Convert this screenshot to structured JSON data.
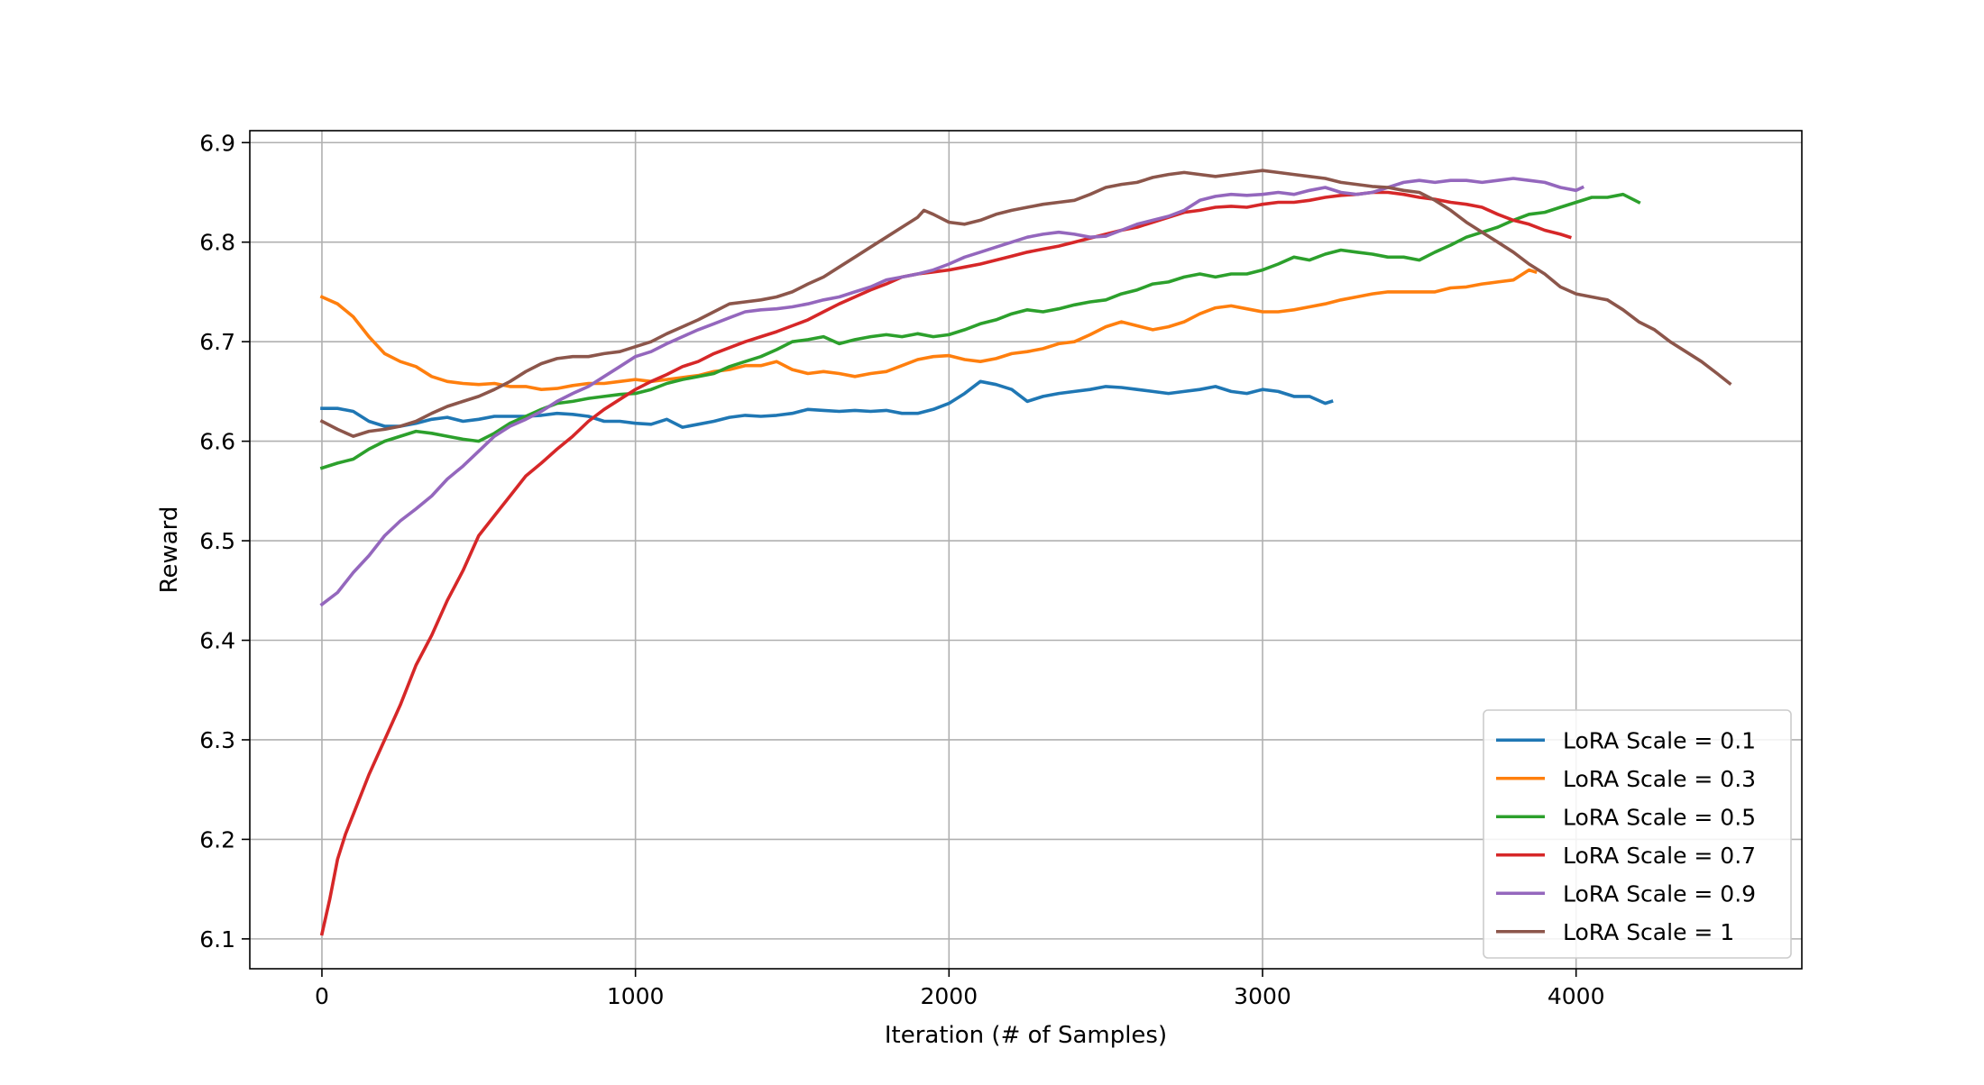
{
  "chart_data": {
    "type": "line",
    "title": "",
    "xlabel": "Iteration (# of Samples)",
    "ylabel": "Reward",
    "xlim": [
      -230,
      4720
    ],
    "ylim": [
      6.07,
      6.912
    ],
    "x_ticks": [
      0,
      1000,
      2000,
      3000,
      4000
    ],
    "y_ticks": [
      6.1,
      6.2,
      6.3,
      6.4,
      6.5,
      6.6,
      6.7,
      6.8,
      6.9
    ],
    "x_tick_labels": [
      "0",
      "1000",
      "2000",
      "3000",
      "4000"
    ],
    "y_tick_labels": [
      "6.1",
      "6.2",
      "6.3",
      "6.4",
      "6.5",
      "6.6",
      "6.7",
      "6.8",
      "6.9"
    ],
    "grid": true,
    "legend_position": "lower-right",
    "series": [
      {
        "name": "LoRA Scale = 0.1",
        "color": "#1f77b4",
        "x": [
          0,
          50,
          100,
          150,
          200,
          250,
          300,
          350,
          400,
          450,
          500,
          550,
          600,
          650,
          700,
          750,
          800,
          850,
          900,
          950,
          1000,
          1050,
          1100,
          1150,
          1200,
          1250,
          1300,
          1350,
          1400,
          1450,
          1500,
          1550,
          1600,
          1650,
          1700,
          1750,
          1800,
          1850,
          1900,
          1950,
          2000,
          2050,
          2100,
          2150,
          2200,
          2250,
          2300,
          2350,
          2400,
          2450,
          2500,
          2550,
          2600,
          2650,
          2700,
          2750,
          2800,
          2850,
          2900,
          2950,
          3000,
          3050,
          3100,
          3150,
          3200,
          3220
        ],
        "y": [
          6.633,
          6.633,
          6.63,
          6.62,
          6.615,
          6.615,
          6.618,
          6.622,
          6.624,
          6.62,
          6.622,
          6.625,
          6.625,
          6.625,
          6.626,
          6.628,
          6.627,
          6.625,
          6.62,
          6.62,
          6.618,
          6.617,
          6.622,
          6.614,
          6.617,
          6.62,
          6.624,
          6.626,
          6.625,
          6.626,
          6.628,
          6.632,
          6.631,
          6.63,
          6.631,
          6.63,
          6.631,
          6.628,
          6.628,
          6.632,
          6.638,
          6.648,
          6.66,
          6.657,
          6.652,
          6.64,
          6.645,
          6.648,
          6.65,
          6.652,
          6.655,
          6.654,
          6.652,
          6.65,
          6.648,
          6.65,
          6.652,
          6.655,
          6.65,
          6.648,
          6.652,
          6.65,
          6.645,
          6.645,
          6.638,
          6.64
        ]
      },
      {
        "name": "LoRA Scale = 0.3",
        "color": "#ff7f0e",
        "x": [
          0,
          50,
          100,
          150,
          200,
          250,
          300,
          350,
          400,
          450,
          500,
          550,
          600,
          650,
          700,
          750,
          800,
          850,
          900,
          950,
          1000,
          1050,
          1100,
          1150,
          1200,
          1250,
          1300,
          1350,
          1400,
          1450,
          1500,
          1550,
          1600,
          1650,
          1700,
          1750,
          1800,
          1850,
          1900,
          1950,
          2000,
          2050,
          2100,
          2150,
          2200,
          2250,
          2300,
          2350,
          2400,
          2450,
          2500,
          2550,
          2600,
          2650,
          2700,
          2750,
          2800,
          2850,
          2900,
          2950,
          3000,
          3050,
          3100,
          3150,
          3200,
          3250,
          3300,
          3350,
          3400,
          3450,
          3500,
          3550,
          3600,
          3650,
          3700,
          3750,
          3800,
          3850,
          3870
        ],
        "y": [
          6.745,
          6.738,
          6.725,
          6.705,
          6.688,
          6.68,
          6.675,
          6.665,
          6.66,
          6.658,
          6.657,
          6.658,
          6.655,
          6.655,
          6.652,
          6.653,
          6.656,
          6.658,
          6.658,
          6.66,
          6.662,
          6.66,
          6.662,
          6.664,
          6.666,
          6.67,
          6.672,
          6.676,
          6.676,
          6.68,
          6.672,
          6.668,
          6.67,
          6.668,
          6.665,
          6.668,
          6.67,
          6.676,
          6.682,
          6.685,
          6.686,
          6.682,
          6.68,
          6.683,
          6.688,
          6.69,
          6.693,
          6.698,
          6.7,
          6.707,
          6.715,
          6.72,
          6.716,
          6.712,
          6.715,
          6.72,
          6.728,
          6.734,
          6.736,
          6.733,
          6.73,
          6.73,
          6.732,
          6.735,
          6.738,
          6.742,
          6.745,
          6.748,
          6.75,
          6.75,
          6.75,
          6.75,
          6.754,
          6.755,
          6.758,
          6.76,
          6.762,
          6.772,
          6.77
        ]
      },
      {
        "name": "LoRA Scale = 0.5",
        "color": "#2ca02c",
        "x": [
          0,
          50,
          100,
          150,
          200,
          250,
          300,
          350,
          400,
          450,
          500,
          550,
          600,
          650,
          700,
          750,
          800,
          850,
          900,
          950,
          1000,
          1050,
          1100,
          1150,
          1200,
          1250,
          1300,
          1350,
          1400,
          1450,
          1500,
          1550,
          1600,
          1650,
          1700,
          1750,
          1800,
          1850,
          1900,
          1950,
          2000,
          2050,
          2100,
          2150,
          2200,
          2250,
          2300,
          2350,
          2400,
          2450,
          2500,
          2550,
          2600,
          2650,
          2700,
          2750,
          2800,
          2850,
          2900,
          2950,
          3000,
          3050,
          3100,
          3150,
          3200,
          3250,
          3300,
          3350,
          3400,
          3450,
          3500,
          3550,
          3600,
          3650,
          3700,
          3750,
          3800,
          3850,
          3900,
          3950,
          4000,
          4050,
          4100,
          4150,
          4200
        ],
        "y": [
          6.573,
          6.578,
          6.582,
          6.592,
          6.6,
          6.605,
          6.61,
          6.608,
          6.605,
          6.602,
          6.6,
          6.608,
          6.618,
          6.625,
          6.632,
          6.638,
          6.64,
          6.643,
          6.645,
          6.647,
          6.648,
          6.652,
          6.658,
          6.662,
          6.665,
          6.668,
          6.675,
          6.68,
          6.685,
          6.692,
          6.7,
          6.702,
          6.705,
          6.698,
          6.702,
          6.705,
          6.707,
          6.705,
          6.708,
          6.705,
          6.707,
          6.712,
          6.718,
          6.722,
          6.728,
          6.732,
          6.73,
          6.733,
          6.737,
          6.74,
          6.742,
          6.748,
          6.752,
          6.758,
          6.76,
          6.765,
          6.768,
          6.765,
          6.768,
          6.768,
          6.772,
          6.778,
          6.785,
          6.782,
          6.788,
          6.792,
          6.79,
          6.788,
          6.785,
          6.785,
          6.782,
          6.79,
          6.797,
          6.805,
          6.81,
          6.815,
          6.822,
          6.828,
          6.83,
          6.835,
          6.84,
          6.845,
          6.845,
          6.848,
          6.84
        ]
      },
      {
        "name": "LoRA Scale = 0.7",
        "color": "#d62728",
        "x": [
          0,
          25,
          50,
          75,
          100,
          150,
          200,
          250,
          300,
          350,
          400,
          450,
          500,
          550,
          600,
          650,
          700,
          750,
          800,
          850,
          900,
          950,
          1000,
          1050,
          1100,
          1150,
          1200,
          1250,
          1300,
          1350,
          1400,
          1450,
          1500,
          1550,
          1600,
          1650,
          1700,
          1750,
          1800,
          1850,
          1900,
          1950,
          2000,
          2050,
          2100,
          2150,
          2200,
          2250,
          2300,
          2350,
          2400,
          2450,
          2500,
          2550,
          2600,
          2650,
          2700,
          2750,
          2800,
          2850,
          2900,
          2950,
          3000,
          3050,
          3100,
          3150,
          3200,
          3250,
          3300,
          3350,
          3400,
          3450,
          3500,
          3550,
          3600,
          3650,
          3700,
          3750,
          3800,
          3850,
          3900,
          3950,
          3980
        ],
        "y": [
          6.105,
          6.14,
          6.18,
          6.205,
          6.225,
          6.265,
          6.3,
          6.335,
          6.375,
          6.405,
          6.44,
          6.47,
          6.505,
          6.525,
          6.545,
          6.565,
          6.578,
          6.592,
          6.605,
          6.62,
          6.632,
          6.642,
          6.652,
          6.66,
          6.667,
          6.675,
          6.68,
          6.688,
          6.694,
          6.7,
          6.705,
          6.71,
          6.716,
          6.722,
          6.73,
          6.738,
          6.745,
          6.752,
          6.758,
          6.765,
          6.768,
          6.77,
          6.772,
          6.775,
          6.778,
          6.782,
          6.786,
          6.79,
          6.793,
          6.796,
          6.8,
          6.804,
          6.808,
          6.812,
          6.815,
          6.82,
          6.825,
          6.83,
          6.832,
          6.835,
          6.836,
          6.835,
          6.838,
          6.84,
          6.84,
          6.842,
          6.845,
          6.847,
          6.848,
          6.85,
          6.85,
          6.848,
          6.845,
          6.843,
          6.84,
          6.838,
          6.835,
          6.828,
          6.822,
          6.818,
          6.812,
          6.808,
          6.805
        ]
      },
      {
        "name": "LoRA Scale = 0.9",
        "color": "#9467bd",
        "x": [
          0,
          50,
          100,
          150,
          200,
          250,
          300,
          350,
          400,
          450,
          500,
          550,
          600,
          650,
          700,
          750,
          800,
          850,
          900,
          950,
          1000,
          1050,
          1100,
          1150,
          1200,
          1250,
          1300,
          1350,
          1400,
          1450,
          1500,
          1550,
          1600,
          1650,
          1700,
          1750,
          1800,
          1850,
          1900,
          1950,
          2000,
          2050,
          2100,
          2150,
          2200,
          2250,
          2300,
          2350,
          2400,
          2450,
          2500,
          2550,
          2600,
          2650,
          2700,
          2750,
          2800,
          2850,
          2900,
          2950,
          3000,
          3050,
          3100,
          3150,
          3200,
          3250,
          3300,
          3350,
          3400,
          3450,
          3500,
          3550,
          3600,
          3650,
          3700,
          3750,
          3800,
          3850,
          3900,
          3950,
          4000,
          4020
        ],
        "y": [
          6.436,
          6.448,
          6.468,
          6.485,
          6.505,
          6.52,
          6.532,
          6.545,
          6.562,
          6.575,
          6.59,
          6.605,
          6.615,
          6.622,
          6.63,
          6.64,
          6.648,
          6.655,
          6.665,
          6.675,
          6.685,
          6.69,
          6.698,
          6.705,
          6.712,
          6.718,
          6.724,
          6.73,
          6.732,
          6.733,
          6.735,
          6.738,
          6.742,
          6.745,
          6.75,
          6.755,
          6.762,
          6.765,
          6.768,
          6.772,
          6.778,
          6.785,
          6.79,
          6.795,
          6.8,
          6.805,
          6.808,
          6.81,
          6.808,
          6.805,
          6.806,
          6.812,
          6.818,
          6.822,
          6.826,
          6.832,
          6.842,
          6.846,
          6.848,
          6.847,
          6.848,
          6.85,
          6.848,
          6.852,
          6.855,
          6.85,
          6.848,
          6.85,
          6.855,
          6.86,
          6.862,
          6.86,
          6.862,
          6.862,
          6.86,
          6.862,
          6.864,
          6.862,
          6.86,
          6.855,
          6.852,
          6.855
        ]
      },
      {
        "name": "LoRA Scale = 1",
        "color": "#8c564b",
        "x": [
          0,
          50,
          100,
          150,
          200,
          250,
          300,
          350,
          400,
          450,
          500,
          550,
          600,
          650,
          700,
          750,
          800,
          850,
          900,
          950,
          1000,
          1050,
          1100,
          1150,
          1200,
          1250,
          1300,
          1350,
          1400,
          1450,
          1500,
          1550,
          1600,
          1650,
          1700,
          1750,
          1800,
          1850,
          1900,
          1920,
          1950,
          2000,
          2050,
          2100,
          2150,
          2200,
          2250,
          2300,
          2350,
          2400,
          2450,
          2500,
          2550,
          2600,
          2650,
          2700,
          2750,
          2800,
          2850,
          2900,
          2950,
          3000,
          3050,
          3100,
          3150,
          3200,
          3250,
          3300,
          3350,
          3400,
          3450,
          3500,
          3550,
          3600,
          3650,
          3700,
          3750,
          3800,
          3850,
          3900,
          3950,
          4000,
          4050,
          4100,
          4150,
          4200,
          4250,
          4300,
          4350,
          4400,
          4450,
          4490
        ],
        "y": [
          6.62,
          6.612,
          6.605,
          6.61,
          6.612,
          6.615,
          6.62,
          6.628,
          6.635,
          6.64,
          6.645,
          6.652,
          6.66,
          6.67,
          6.678,
          6.683,
          6.685,
          6.685,
          6.688,
          6.69,
          6.695,
          6.7,
          6.708,
          6.715,
          6.722,
          6.73,
          6.738,
          6.74,
          6.742,
          6.745,
          6.75,
          6.758,
          6.765,
          6.775,
          6.785,
          6.795,
          6.805,
          6.815,
          6.825,
          6.832,
          6.828,
          6.82,
          6.818,
          6.822,
          6.828,
          6.832,
          6.835,
          6.838,
          6.84,
          6.842,
          6.848,
          6.855,
          6.858,
          6.86,
          6.865,
          6.868,
          6.87,
          6.868,
          6.866,
          6.868,
          6.87,
          6.872,
          6.87,
          6.868,
          6.866,
          6.864,
          6.86,
          6.858,
          6.856,
          6.855,
          6.852,
          6.85,
          6.842,
          6.832,
          6.82,
          6.81,
          6.8,
          6.79,
          6.778,
          6.768,
          6.755,
          6.748,
          6.745,
          6.742,
          6.732,
          6.72,
          6.712,
          6.7,
          6.69,
          6.68,
          6.668,
          6.658
        ]
      }
    ]
  }
}
